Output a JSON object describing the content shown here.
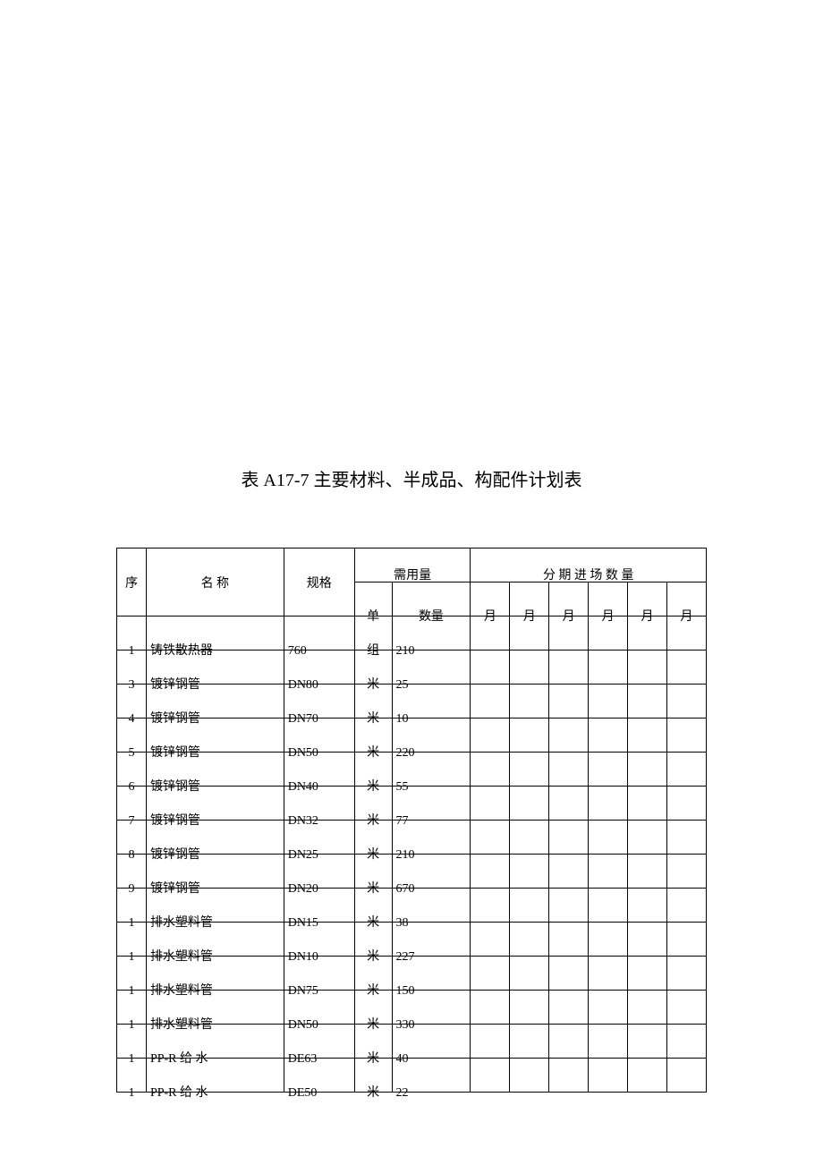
{
  "title": "表 A17-7  主要材料、半成品、构配件计划表",
  "headers": {
    "seq": "序",
    "name": "名   称",
    "spec": "规格",
    "needed": "需用量",
    "schedule": "分   期   进   场   数   量",
    "unit": "单",
    "qty": "数量",
    "month": "月"
  },
  "rows": [
    {
      "seq": "1",
      "name": "铸铁散热器",
      "spec": "760",
      "unit": "组",
      "qty": "210"
    },
    {
      "seq": "3",
      "name": "镀锌钢管",
      "spec": "DN80",
      "unit": "米",
      "qty": "25"
    },
    {
      "seq": "4",
      "name": "镀锌钢管",
      "spec": "DN70",
      "unit": "米",
      "qty": "10"
    },
    {
      "seq": "5",
      "name": "镀锌钢管",
      "spec": "DN50",
      "unit": "米",
      "qty": "220"
    },
    {
      "seq": "6",
      "name": "镀锌钢管",
      "spec": "DN40",
      "unit": "米",
      "qty": "55"
    },
    {
      "seq": "7",
      "name": "镀锌钢管",
      "spec": "DN32",
      "unit": "米",
      "qty": "77"
    },
    {
      "seq": "8",
      "name": "镀锌钢管",
      "spec": "DN25",
      "unit": "米",
      "qty": "210"
    },
    {
      "seq": "9",
      "name": "镀锌钢管",
      "spec": "DN20",
      "unit": "米",
      "qty": "670"
    },
    {
      "seq": "1",
      "name": "排水塑料管",
      "spec": "DN15",
      "unit": "米",
      "qty": "38"
    },
    {
      "seq": "1",
      "name": "排水塑料管",
      "spec": "DN10",
      "unit": "米",
      "qty": "227"
    },
    {
      "seq": "1",
      "name": "排水塑料管",
      "spec": "DN75",
      "unit": "米",
      "qty": "150"
    },
    {
      "seq": "1",
      "name": "排水塑料管",
      "spec": "DN50",
      "unit": "米",
      "qty": "330"
    },
    {
      "seq": "1",
      "name": "PP-R 给 水",
      "spec": "DE63",
      "unit": "米",
      "qty": "40"
    },
    {
      "seq": "1",
      "name": "PP-R 给 水",
      "spec": "DE50",
      "unit": "米",
      "qty": "22"
    }
  ]
}
